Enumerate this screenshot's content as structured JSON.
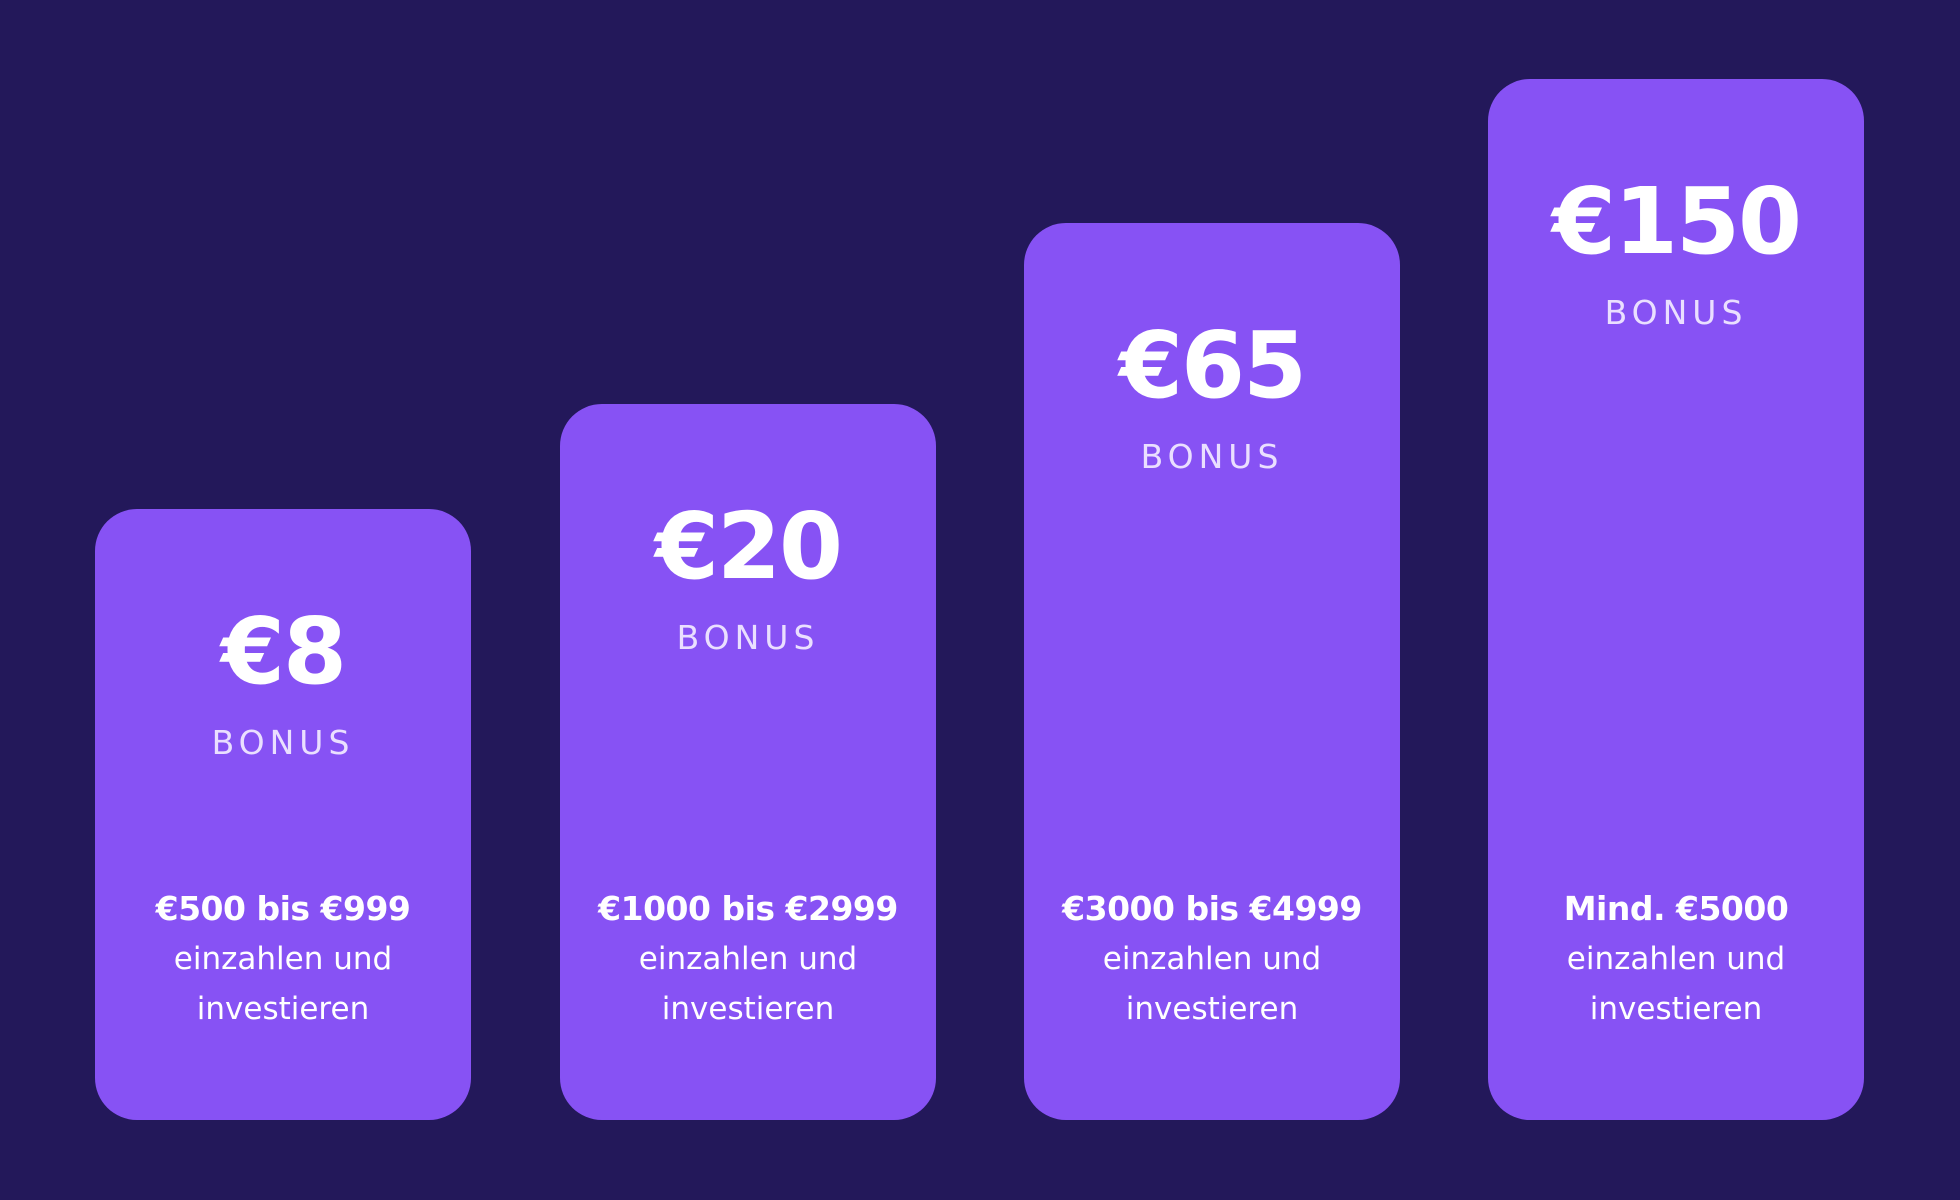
{
  "colors": {
    "background": "#23185a",
    "card": "#8752f4",
    "text": "#ffffff"
  },
  "cards": [
    {
      "amount": "€8",
      "label": "BONUS",
      "range": "€500 bis €999",
      "line2": "einzahlen und",
      "line3": "investieren"
    },
    {
      "amount": "€20",
      "label": "BONUS",
      "range": "€1000 bis €2999",
      "line2": "einzahlen und",
      "line3": "investieren"
    },
    {
      "amount": "€65",
      "label": "BONUS",
      "range": "€3000 bis €4999",
      "line2": "einzahlen und",
      "line3": "investieren"
    },
    {
      "amount": "€150",
      "label": "BONUS",
      "range": "Mind. €5000",
      "line2": "einzahlen und",
      "line3": "investieren"
    }
  ]
}
